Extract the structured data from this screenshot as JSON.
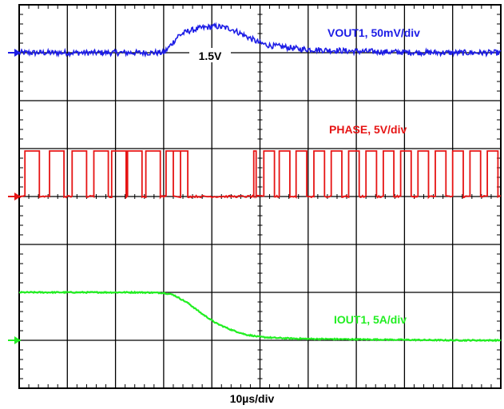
{
  "chart_data": {
    "type": "line",
    "title": "",
    "xlabel": "10µs/div",
    "ylabel": "",
    "grid": true,
    "divisions": {
      "x": 10,
      "y": 8
    },
    "x_range_div": [
      0,
      10
    ],
    "y_range_div": [
      0,
      8
    ],
    "series": [
      {
        "name": "VOUT1, 50mV/div",
        "color": "#1c1ce6",
        "marker_div": 7,
        "marker_label": "1.5V",
        "x_div": [
          0,
          0.5,
          1.0,
          1.5,
          2.0,
          2.5,
          3.0,
          3.1,
          3.3,
          3.5,
          3.8,
          4.1,
          4.4,
          4.6,
          4.8,
          5.0,
          5.2,
          5.5,
          5.8,
          6.2,
          6.5,
          7.0,
          8.0,
          9.0,
          10.0
        ],
        "y_div": [
          7.0,
          7.0,
          7.0,
          7.0,
          7.0,
          7.0,
          7.0,
          7.1,
          7.35,
          7.45,
          7.52,
          7.55,
          7.5,
          7.4,
          7.3,
          7.2,
          7.15,
          7.12,
          7.08,
          7.06,
          7.05,
          7.03,
          7.01,
          7.0,
          7.0
        ]
      },
      {
        "name": "PHASE, 5V/div",
        "color": "#e61414",
        "marker_div": 4,
        "low_div": 4.0,
        "high_div": 4.95,
        "pulses_div": [
          [
            0.12,
            0.42
          ],
          [
            0.63,
            0.93
          ],
          [
            1.1,
            1.4
          ],
          [
            1.55,
            1.85
          ],
          [
            1.92,
            2.22
          ],
          [
            2.25,
            2.55
          ],
          [
            2.63,
            2.93
          ],
          [
            3.05,
            3.35
          ],
          [
            3.2,
            3.5
          ],
          [
            4.87,
            4.92
          ],
          [
            5.08,
            5.3
          ],
          [
            5.4,
            5.62
          ],
          [
            5.75,
            5.97
          ],
          [
            6.12,
            6.34
          ],
          [
            6.48,
            6.7
          ],
          [
            6.84,
            7.06
          ],
          [
            7.2,
            7.42
          ],
          [
            7.56,
            7.78
          ],
          [
            7.92,
            8.14
          ],
          [
            8.28,
            8.5
          ],
          [
            8.64,
            8.86
          ],
          [
            9.0,
            9.22
          ],
          [
            9.36,
            9.58
          ],
          [
            9.72,
            9.94
          ]
        ]
      },
      {
        "name": "IOUT1, 5A/div",
        "color": "#22ee22",
        "marker_div": 1,
        "x_div": [
          0,
          0.5,
          1.0,
          1.5,
          2.0,
          2.5,
          3.0,
          3.2,
          3.5,
          3.8,
          4.1,
          4.4,
          4.7,
          5.0,
          5.3,
          5.6,
          6.0,
          7.0,
          8.0,
          9.0,
          10.0
        ],
        "y_div": [
          2.0,
          2.0,
          2.0,
          2.0,
          2.0,
          2.0,
          1.99,
          1.95,
          1.78,
          1.55,
          1.35,
          1.22,
          1.12,
          1.07,
          1.05,
          1.04,
          1.03,
          1.02,
          1.01,
          1.0,
          1.0
        ]
      }
    ]
  }
}
